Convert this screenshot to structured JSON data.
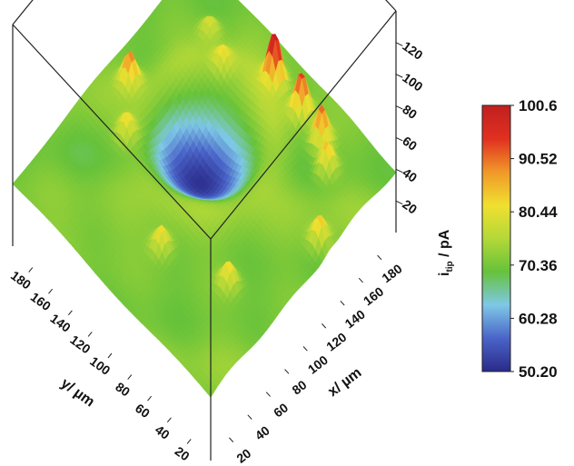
{
  "chart_data": {
    "type": "surface3d",
    "title": "",
    "xlabel": "x/ µm",
    "ylabel": "y/ µm",
    "zlabel": "i_tip / pA",
    "x_ticks": [
      "20",
      "40",
      "60",
      "80",
      "100",
      "120",
      "140",
      "160",
      "180"
    ],
    "y_ticks": [
      "20",
      "40",
      "60",
      "80",
      "100",
      "120",
      "140",
      "160",
      "180"
    ],
    "z_ticks": [
      "20",
      "40",
      "60",
      "80",
      "100",
      "120"
    ],
    "x_range": [
      0,
      200
    ],
    "y_range": [
      0,
      200
    ],
    "z_range": [
      0,
      140
    ],
    "colorbar": {
      "min": 50.2,
      "max": 100.6,
      "tick_values": [
        100.6,
        90.52,
        80.44,
        70.36,
        60.28,
        50.2
      ],
      "tick_labels": [
        "100.6",
        "90.52",
        "80.44",
        "70.36",
        "60.28",
        "50.20"
      ],
      "stops": [
        "#2a2a8a",
        "#4a64c8",
        "#7ec8e6",
        "#66c23a",
        "#b4d838",
        "#f0e030",
        "#f09828",
        "#e03020",
        "#c02020"
      ]
    },
    "surface": {
      "baseline_current": 71,
      "depression": {
        "x": 110,
        "y": 115,
        "current": 52
      },
      "peaks": [
        {
          "x": 178,
          "y": 102,
          "current": 100
        },
        {
          "x": 178,
          "y": 75,
          "current": 96
        },
        {
          "x": 175,
          "y": 52,
          "current": 94
        },
        {
          "x": 166,
          "y": 38,
          "current": 88
        },
        {
          "x": 128,
          "y": 10,
          "current": 86
        },
        {
          "x": 62,
          "y": 40,
          "current": 84
        },
        {
          "x": 45,
          "y": 92,
          "current": 84
        },
        {
          "x": 80,
          "y": 160,
          "current": 83
        },
        {
          "x": 105,
          "y": 180,
          "current": 90
        },
        {
          "x": 170,
          "y": 160,
          "current": 80
        },
        {
          "x": 160,
          "y": 138,
          "current": 80
        }
      ]
    }
  }
}
